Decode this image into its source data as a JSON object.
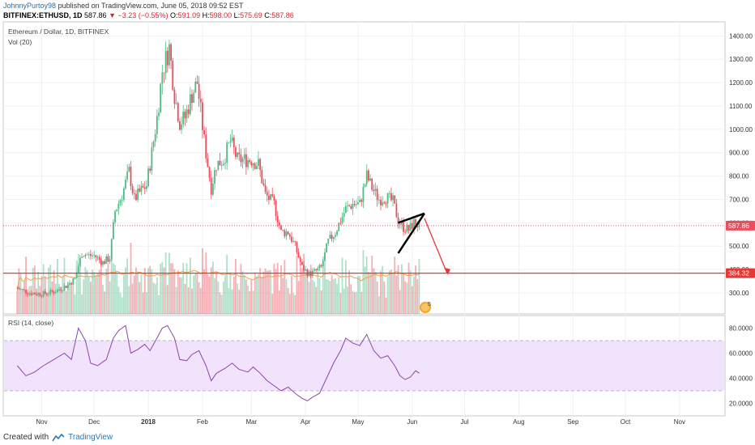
{
  "header": {
    "author": "JohnnyPurtoy98",
    "published": "published on TradingView.com, June 05, 2018 09:52 EST",
    "symbol": "BITFINEX:ETHUSD, 1D",
    "last": "587.86",
    "change": "▼ −3.23 (−0.55%)",
    "o_label": "O:",
    "o": "591.09",
    "h_label": "H:",
    "h": "598.00",
    "l_label": "L:",
    "l": "575.69",
    "c_label": "C:",
    "c": "587.86"
  },
  "legend": {
    "title": "Ethereum / Dollar, 1D, BITFINEX",
    "vol": "Vol (20)",
    "rsi": "RSI (14, close)"
  },
  "price_labels": {
    "current": "587.86",
    "target": "384.32"
  },
  "event_badge": "5",
  "footer": {
    "created": "Created with",
    "brand": "TradingView"
  },
  "colors": {
    "up": "#53b987",
    "down": "#eb4d5c",
    "target_line": "#e53935",
    "rsi_line": "#8e44ad",
    "rsi_band": "#f1e3fb",
    "vol_ma": "#f0a050"
  },
  "chart_data": [
    {
      "type": "candlestick",
      "title": "Ethereum / Dollar, 1D, BITFINEX",
      "ylim": [
        210,
        1460
      ],
      "y_ticks": [
        300,
        400,
        500,
        600,
        700,
        800,
        900,
        1000,
        1100,
        1200,
        1300,
        1400
      ],
      "y_tick_labels": [
        "300.00",
        "400.00",
        "500.00",
        "600.00",
        "700.00",
        "800.00",
        "900.00",
        "1000.00",
        "1100.00",
        "1200.00",
        "1300.00",
        "1400.00"
      ],
      "x_ticks": [
        "Nov",
        "Dec",
        "2018",
        "Feb",
        "Mar",
        "Apr",
        "May",
        "Jun",
        "Jul",
        "Aug",
        "Sep",
        "Oct",
        "Nov"
      ],
      "close_path": [
        [
          "2017-10-18",
          320
        ],
        [
          "2017-10-25",
          300
        ],
        [
          "2017-11-01",
          295
        ],
        [
          "2017-11-08",
          305
        ],
        [
          "2017-11-15",
          330
        ],
        [
          "2017-11-20",
          360
        ],
        [
          "2017-11-24",
          470
        ],
        [
          "2017-11-28",
          460
        ],
        [
          "2017-12-01",
          460
        ],
        [
          "2017-12-06",
          430
        ],
        [
          "2017-12-10",
          450
        ],
        [
          "2017-12-13",
          650
        ],
        [
          "2017-12-17",
          720
        ],
        [
          "2017-12-21",
          820
        ],
        [
          "2017-12-24",
          700
        ],
        [
          "2017-12-27",
          730
        ],
        [
          "2017-12-31",
          760
        ],
        [
          "2018-01-03",
          900
        ],
        [
          "2018-01-06",
          1050
        ],
        [
          "2018-01-09",
          1250
        ],
        [
          "2018-01-13",
          1350
        ],
        [
          "2018-01-16",
          1150
        ],
        [
          "2018-01-19",
          1030
        ],
        [
          "2018-01-22",
          1050
        ],
        [
          "2018-01-26",
          1150
        ],
        [
          "2018-01-29",
          1200
        ],
        [
          "2018-02-02",
          950
        ],
        [
          "2018-02-06",
          750
        ],
        [
          "2018-02-09",
          850
        ],
        [
          "2018-02-13",
          870
        ],
        [
          "2018-02-17",
          950
        ],
        [
          "2018-02-21",
          870
        ],
        [
          "2018-02-25",
          870
        ],
        [
          "2018-03-01",
          870
        ],
        [
          "2018-03-05",
          850
        ],
        [
          "2018-03-09",
          720
        ],
        [
          "2018-03-14",
          680
        ],
        [
          "2018-03-18",
          560
        ],
        [
          "2018-03-22",
          560
        ],
        [
          "2018-03-26",
          500
        ],
        [
          "2018-03-30",
          410
        ],
        [
          "2018-04-03",
          380
        ],
        [
          "2018-04-06",
          390
        ],
        [
          "2018-04-10",
          410
        ],
        [
          "2018-04-14",
          520
        ],
        [
          "2018-04-18",
          560
        ],
        [
          "2018-04-21",
          610
        ],
        [
          "2018-04-24",
          660
        ],
        [
          "2018-04-28",
          680
        ],
        [
          "2018-05-02",
          680
        ],
        [
          "2018-05-06",
          800
        ],
        [
          "2018-05-09",
          750
        ],
        [
          "2018-05-13",
          700
        ],
        [
          "2018-05-17",
          710
        ],
        [
          "2018-05-21",
          690
        ],
        [
          "2018-05-24",
          610
        ],
        [
          "2018-05-27",
          580
        ],
        [
          "2018-05-30",
          570
        ],
        [
          "2018-06-02",
          600
        ],
        [
          "2018-06-05",
          587.86
        ]
      ],
      "levels": [
        {
          "name": "current_price",
          "value": 587.86,
          "style": "dotted"
        },
        {
          "name": "target",
          "value": 384.32,
          "style": "solid"
        }
      ],
      "annotations": {
        "wedge_upper": [
          [
            "2018-05-24",
            600
          ],
          [
            "2018-06-08",
            640
          ]
        ],
        "wedge_lower": [
          [
            "2018-05-24",
            470
          ],
          [
            "2018-06-08",
            640
          ]
        ],
        "arrow": [
          [
            "2018-06-08",
            620
          ],
          [
            "2018-06-21",
            384
          ]
        ]
      }
    },
    {
      "type": "volume",
      "title": "Vol (20)",
      "ma_period": 20
    },
    {
      "type": "line",
      "title": "RSI (14, close)",
      "ylim": [
        10,
        90
      ],
      "y_ticks": [
        20,
        40,
        60,
        80
      ],
      "y_tick_labels": [
        "20.0000",
        "40.0000",
        "60.0000",
        "80.0000"
      ],
      "band": [
        30,
        70
      ],
      "points": [
        [
          "2017-10-18",
          50
        ],
        [
          "2017-10-23",
          42
        ],
        [
          "2017-10-28",
          45
        ],
        [
          "2017-11-02",
          50
        ],
        [
          "2017-11-08",
          55
        ],
        [
          "2017-11-14",
          60
        ],
        [
          "2017-11-18",
          55
        ],
        [
          "2017-11-22",
          80
        ],
        [
          "2017-11-26",
          70
        ],
        [
          "2017-11-29",
          52
        ],
        [
          "2017-12-03",
          50
        ],
        [
          "2017-12-08",
          55
        ],
        [
          "2017-12-12",
          72
        ],
        [
          "2017-12-15",
          78
        ],
        [
          "2017-12-19",
          82
        ],
        [
          "2017-12-22",
          60
        ],
        [
          "2017-12-26",
          63
        ],
        [
          "2017-12-30",
          67
        ],
        [
          "2018-01-02",
          62
        ],
        [
          "2018-01-06",
          72
        ],
        [
          "2018-01-09",
          80
        ],
        [
          "2018-01-12",
          82
        ],
        [
          "2018-01-16",
          72
        ],
        [
          "2018-01-19",
          55
        ],
        [
          "2018-01-23",
          54
        ],
        [
          "2018-01-26",
          59
        ],
        [
          "2018-01-30",
          62
        ],
        [
          "2018-02-03",
          50
        ],
        [
          "2018-02-06",
          38
        ],
        [
          "2018-02-09",
          44
        ],
        [
          "2018-02-14",
          48
        ],
        [
          "2018-02-18",
          52
        ],
        [
          "2018-02-22",
          47
        ],
        [
          "2018-02-27",
          45
        ],
        [
          "2018-03-02",
          49
        ],
        [
          "2018-03-06",
          44
        ],
        [
          "2018-03-10",
          38
        ],
        [
          "2018-03-15",
          33
        ],
        [
          "2018-03-18",
          30
        ],
        [
          "2018-03-22",
          33
        ],
        [
          "2018-03-26",
          28
        ],
        [
          "2018-03-30",
          24
        ],
        [
          "2018-04-02",
          22
        ],
        [
          "2018-04-05",
          25
        ],
        [
          "2018-04-09",
          28
        ],
        [
          "2018-04-13",
          40
        ],
        [
          "2018-04-17",
          52
        ],
        [
          "2018-04-21",
          62
        ],
        [
          "2018-04-24",
          72
        ],
        [
          "2018-04-28",
          68
        ],
        [
          "2018-05-02",
          66
        ],
        [
          "2018-05-06",
          75
        ],
        [
          "2018-05-10",
          62
        ],
        [
          "2018-05-14",
          56
        ],
        [
          "2018-05-18",
          58
        ],
        [
          "2018-05-22",
          50
        ],
        [
          "2018-05-25",
          42
        ],
        [
          "2018-05-28",
          39
        ],
        [
          "2018-05-31",
          41
        ],
        [
          "2018-06-03",
          46
        ],
        [
          "2018-06-05",
          44
        ]
      ]
    }
  ]
}
